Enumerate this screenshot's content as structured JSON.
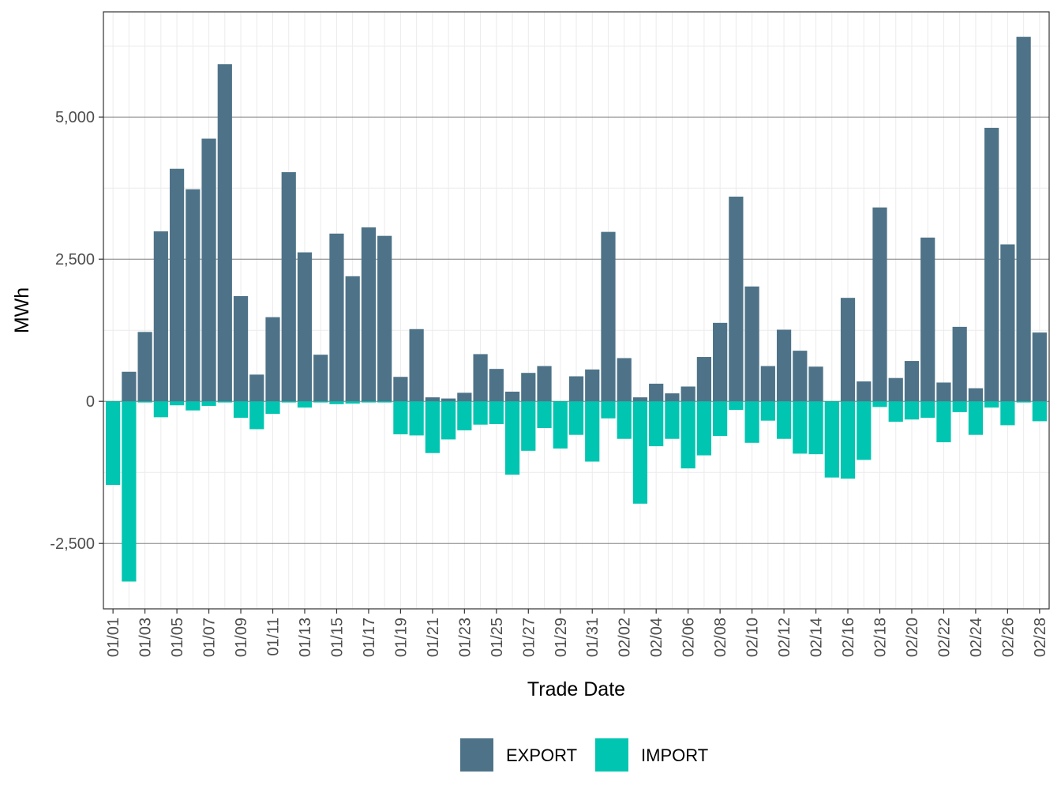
{
  "chart_data": {
    "type": "bar",
    "xlabel": "Trade Date",
    "ylabel": "MWh",
    "ylim": [
      -3650,
      6850
    ],
    "yticks": [
      -2500,
      0,
      2500,
      5000
    ],
    "ytick_labels": [
      "-2,500",
      "0",
      "2,500",
      "5,000"
    ],
    "grid": true,
    "legend_position": "bottom",
    "categories": [
      "01/01",
      "01/02",
      "01/03",
      "01/04",
      "01/05",
      "01/06",
      "01/07",
      "01/08",
      "01/09",
      "01/10",
      "01/11",
      "01/12",
      "01/13",
      "01/14",
      "01/15",
      "01/16",
      "01/17",
      "01/18",
      "01/19",
      "01/20",
      "01/21",
      "01/22",
      "01/23",
      "01/24",
      "01/25",
      "01/26",
      "01/27",
      "01/28",
      "01/29",
      "01/30",
      "01/31",
      "02/01",
      "02/02",
      "02/03",
      "02/04",
      "02/05",
      "02/06",
      "02/07",
      "02/08",
      "02/09",
      "02/10",
      "02/11",
      "02/12",
      "02/13",
      "02/14",
      "02/15",
      "02/16",
      "02/17",
      "02/18",
      "02/19",
      "02/20",
      "02/21",
      "02/22",
      "02/23",
      "02/24",
      "02/25",
      "02/26",
      "02/27",
      "02/28"
    ],
    "tick_labels": [
      "01/01",
      "01/03",
      "01/05",
      "01/07",
      "01/09",
      "01/11",
      "01/13",
      "01/15",
      "01/17",
      "01/19",
      "01/21",
      "01/23",
      "01/25",
      "01/27",
      "01/29",
      "01/31",
      "02/02",
      "02/04",
      "02/06",
      "02/08",
      "02/10",
      "02/12",
      "02/14",
      "02/16",
      "02/18",
      "02/20",
      "02/22",
      "02/24",
      "02/26",
      "02/28"
    ],
    "series": [
      {
        "name": "EXPORT",
        "color": "#4e7388",
        "values": [
          0,
          520,
          1220,
          2990,
          4090,
          3730,
          4620,
          5930,
          1850,
          470,
          1480,
          4030,
          2620,
          820,
          2950,
          2200,
          3060,
          2910,
          430,
          1270,
          70,
          50,
          150,
          830,
          570,
          170,
          500,
          620,
          0,
          440,
          560,
          2980,
          760,
          70,
          310,
          140,
          260,
          780,
          1380,
          3600,
          2020,
          620,
          1260,
          890,
          610,
          0,
          1820,
          350,
          3410,
          410,
          710,
          2880,
          330,
          1310,
          230,
          4810,
          2760,
          6410,
          1210
        ]
      },
      {
        "name": "IMPORT",
        "color": "#00c5b0",
        "values": [
          -1470,
          -3170,
          -20,
          -280,
          -70,
          -160,
          -80,
          -20,
          -290,
          -490,
          -220,
          -20,
          -110,
          -20,
          -50,
          -40,
          -20,
          -20,
          -580,
          -600,
          -910,
          -670,
          -510,
          -410,
          -400,
          -1290,
          -870,
          -470,
          -830,
          -590,
          -1060,
          -300,
          -660,
          -1800,
          -790,
          -660,
          -1180,
          -950,
          -610,
          -150,
          -730,
          -340,
          -660,
          -920,
          -930,
          -1340,
          -1360,
          -1030,
          -100,
          -360,
          -320,
          -290,
          -720,
          -190,
          -590,
          -110,
          -420,
          -20,
          -350
        ]
      }
    ]
  }
}
